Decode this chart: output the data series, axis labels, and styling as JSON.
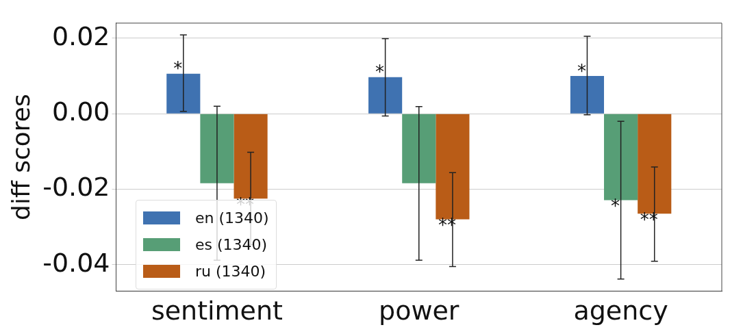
{
  "chart_data": {
    "type": "bar",
    "ylabel": "diff scores",
    "categories": [
      "sentiment",
      "power",
      "agency"
    ],
    "series": [
      {
        "name": "en (1340)",
        "color": "#3f72b1",
        "values": [
          0.0106,
          0.0097,
          0.01
        ],
        "errors": [
          [
            0.0006,
            0.0209
          ],
          [
            -0.0006,
            0.0199
          ],
          [
            -0.0003,
            0.0205
          ]
        ],
        "value_labels": [
          "*",
          "*",
          "*"
        ]
      },
      {
        "name": "es (1340)",
        "color": "#579e76",
        "values": [
          -0.0184,
          -0.0184,
          -0.0229
        ],
        "errors": [
          [
            -0.0388,
            0.002
          ],
          [
            -0.0388,
            0.0019
          ],
          [
            -0.0438,
            -0.002
          ]
        ],
        "value_labels": [
          null,
          null,
          "*"
        ]
      },
      {
        "name": "ru (1340)",
        "color": "#b95c17",
        "values": [
          -0.0225,
          -0.028,
          -0.0265
        ],
        "errors": [
          [
            -0.0347,
            -0.0102
          ],
          [
            -0.0405,
            -0.0156
          ],
          [
            -0.0391,
            -0.0141
          ]
        ],
        "value_labels": [
          "**",
          "**",
          "**"
        ]
      }
    ],
    "ylim": [
      -0.047,
      0.024
    ],
    "yticks": [
      {
        "value": -0.04,
        "label": "-0.04"
      },
      {
        "value": -0.02,
        "label": "-0.02"
      },
      {
        "value": 0,
        "label": "0.00"
      },
      {
        "value": 0.02,
        "label": "0.02"
      }
    ],
    "grid": "y",
    "legend": "bottom left"
  }
}
